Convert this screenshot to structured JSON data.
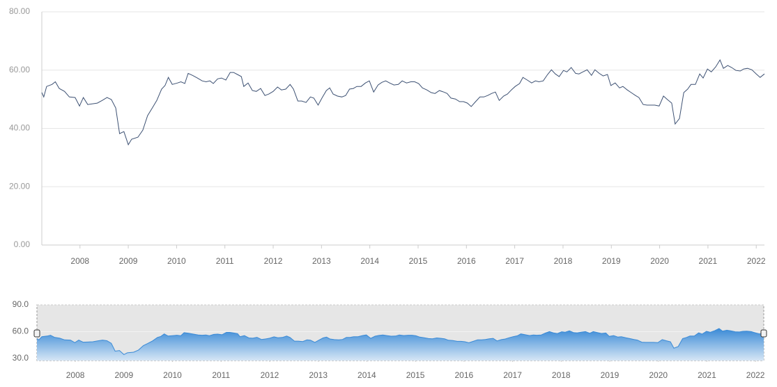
{
  "chart_data": {
    "type": "line",
    "x": [
      2007.21,
      2007.25,
      2007.31,
      2007.42,
      2007.49,
      2007.57,
      2007.68,
      2007.78,
      2007.9,
      2007.99,
      2008.07,
      2008.16,
      2008.36,
      2008.46,
      2008.56,
      2008.65,
      2008.74,
      2008.82,
      2008.91,
      2009.0,
      2009.07,
      2009.2,
      2009.3,
      2009.4,
      2009.49,
      2009.59,
      2009.69,
      2009.76,
      2009.83,
      2009.91,
      2010.02,
      2010.09,
      2010.17,
      2010.24,
      2010.33,
      2010.43,
      2010.53,
      2010.61,
      2010.69,
      2010.76,
      2010.85,
      2010.93,
      2011.02,
      2011.11,
      2011.18,
      2011.26,
      2011.34,
      2011.39,
      2011.48,
      2011.57,
      2011.65,
      2011.74,
      2011.83,
      2011.91,
      2012.0,
      2012.09,
      2012.17,
      2012.26,
      2012.35,
      2012.42,
      2012.51,
      2012.59,
      2012.68,
      2012.77,
      2012.84,
      2012.93,
      2013.01,
      2013.1,
      2013.17,
      2013.24,
      2013.33,
      2013.42,
      2013.5,
      2013.58,
      2013.66,
      2013.73,
      2013.82,
      2013.91,
      2013.99,
      2014.08,
      2014.17,
      2014.25,
      2014.33,
      2014.41,
      2014.5,
      2014.59,
      2014.67,
      2014.76,
      2014.85,
      2014.93,
      2015.01,
      2015.09,
      2015.18,
      2015.27,
      2015.35,
      2015.44,
      2015.53,
      2015.6,
      2015.68,
      2015.77,
      2015.86,
      2015.94,
      2016.02,
      2016.1,
      2016.19,
      2016.28,
      2016.36,
      2016.44,
      2016.52,
      2016.6,
      2016.68,
      2016.77,
      2016.85,
      2016.93,
      2017.01,
      2017.1,
      2017.17,
      2017.26,
      2017.35,
      2017.43,
      2017.5,
      2017.59,
      2017.68,
      2017.76,
      2017.84,
      2017.92,
      2018.01,
      2018.08,
      2018.17,
      2018.26,
      2018.33,
      2018.41,
      2018.5,
      2018.59,
      2018.66,
      2018.75,
      2018.83,
      2018.92,
      2018.99,
      2019.08,
      2019.17,
      2019.24,
      2019.33,
      2019.41,
      2019.5,
      2019.57,
      2019.66,
      2019.74,
      2019.83,
      2019.9,
      2019.99,
      2020.08,
      2020.16,
      2020.25,
      2020.32,
      2020.41,
      2020.5,
      2020.58,
      2020.65,
      2020.74,
      2020.83,
      2020.9,
      2020.99,
      2021.07,
      2021.16,
      2021.25,
      2021.32,
      2021.41,
      2021.49,
      2021.58,
      2021.67,
      2021.74,
      2021.82,
      2021.91,
      2022.0,
      2022.08,
      2022.17
    ],
    "series": [
      {
        "color": "#3d5173",
        "values": [
          52.3,
          50.8,
          54.4,
          55.1,
          56,
          53.7,
          52.7,
          50.8,
          50.6,
          47.7,
          50.6,
          48.2,
          48.7,
          49.6,
          50.6,
          49.9,
          47,
          38.2,
          38.9,
          34.4,
          36.3,
          37,
          39.4,
          44.4,
          46.8,
          49.6,
          53.5,
          54.7,
          57.5,
          55.1,
          55.6,
          56,
          55.4,
          58.9,
          58.2,
          57.3,
          56.3,
          56,
          56.3,
          55.4,
          57,
          57.3,
          56.6,
          59.2,
          59.2,
          58.5,
          57.8,
          54.4,
          55.6,
          53,
          52.7,
          53.7,
          51.3,
          51.8,
          52.7,
          54.2,
          53.2,
          53.5,
          55.1,
          53.5,
          49.4,
          49.4,
          48.9,
          50.8,
          50.4,
          48,
          50.4,
          53,
          53.9,
          51.8,
          51.1,
          50.8,
          51.3,
          53.5,
          53.7,
          54.4,
          54.4,
          55.6,
          56.3,
          52.5,
          54.9,
          55.8,
          56.3,
          55.6,
          54.9,
          55.1,
          56.3,
          55.6,
          56,
          56,
          55.4,
          53.9,
          53.2,
          52.3,
          52,
          53,
          52.5,
          52,
          50.4,
          50.1,
          49.2,
          49.2,
          48.7,
          47.5,
          49.2,
          50.8,
          50.8,
          51.3,
          52,
          52.5,
          49.6,
          51.1,
          51.8,
          53.2,
          54.4,
          55.4,
          57.5,
          56.6,
          55.6,
          56.3,
          56,
          56.3,
          58.5,
          60.1,
          58.7,
          57.8,
          59.9,
          59.4,
          60.9,
          58.9,
          58.7,
          59.4,
          60.1,
          58.2,
          60.1,
          58.9,
          58,
          58.5,
          54.7,
          55.6,
          53.9,
          54.4,
          53.2,
          52.3,
          51.3,
          50.6,
          48.2,
          48,
          48,
          48,
          47.7,
          51.1,
          49.9,
          48.7,
          41.5,
          43.4,
          52.3,
          53.5,
          55.1,
          55.1,
          58.7,
          57.3,
          60.4,
          59.4,
          61.1,
          63.5,
          60.6,
          61.6,
          60.9,
          59.9,
          59.7,
          60.4,
          60.6,
          60.1,
          58.7,
          57.5,
          58.7
        ]
      }
    ],
    "xlim": [
      2007.21,
      2022.17
    ],
    "xticks": [
      2008,
      2009,
      2010,
      2011,
      2012,
      2013,
      2014,
      2015,
      2016,
      2017,
      2018,
      2019,
      2020,
      2021,
      2022
    ],
    "ylim": [
      0,
      80
    ],
    "yticks": [
      {
        "value": 0,
        "label": "0.00"
      },
      {
        "value": 20,
        "label": "20.00"
      },
      {
        "value": 40,
        "label": "40.00"
      },
      {
        "value": 60,
        "label": "60.00"
      },
      {
        "value": 80,
        "label": "80.00"
      }
    ],
    "grid": true,
    "navigator": {
      "color": "#3a8ad6",
      "ylim": [
        30,
        90
      ],
      "yticks": [
        {
          "value": 30,
          "label": "30.0"
        },
        {
          "value": 60,
          "label": "60.0"
        },
        {
          "value": 90,
          "label": "90.0"
        }
      ]
    }
  }
}
